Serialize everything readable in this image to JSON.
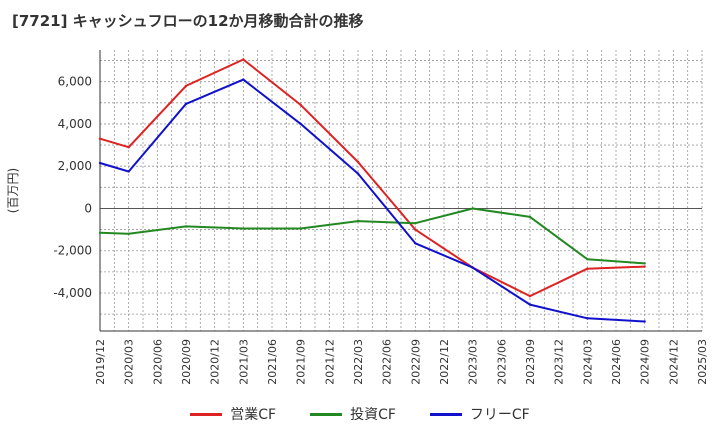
{
  "chart_data": {
    "type": "line",
    "title": "[7721]  キャッシュフローの12か月移動合計の推移",
    "ylabel": "(百万円)",
    "xlabel": "",
    "ylim": [
      -5800,
      7500
    ],
    "yticks": [
      6000,
      4000,
      2000,
      0,
      -2000,
      -4000
    ],
    "ytick_labels": [
      "6,000",
      "4,000",
      "2,000",
      "0",
      "-2,000",
      "-4,000"
    ],
    "categories": [
      "2019/12",
      "2020/03",
      "2020/06",
      "2020/09",
      "2020/12",
      "2021/03",
      "2021/06",
      "2021/09",
      "2021/12",
      "2022/03",
      "2022/06",
      "2022/09",
      "2022/12",
      "2023/03",
      "2023/06",
      "2023/09",
      "2023/12",
      "2024/03",
      "2024/06",
      "2024/09",
      "2024/12",
      "2025/03"
    ],
    "grid": true,
    "series": [
      {
        "name": "営業CF",
        "color": "#dd2222",
        "values": [
          3300,
          2900,
          null,
          5800,
          null,
          7050,
          null,
          4900,
          null,
          2200,
          null,
          -1000,
          null,
          -2800,
          null,
          -4150,
          null,
          -2850,
          null,
          -2750,
          null,
          null
        ]
      },
      {
        "name": "投資CF",
        "color": "#228822",
        "values": [
          -1150,
          -1200,
          null,
          -850,
          null,
          -950,
          null,
          -950,
          null,
          -600,
          null,
          -700,
          null,
          0,
          null,
          -400,
          null,
          -2400,
          null,
          -2600,
          null,
          null
        ]
      },
      {
        "name": "フリーCF",
        "color": "#1111cc",
        "values": [
          2150,
          1750,
          null,
          4950,
          null,
          6100,
          null,
          4000,
          null,
          1650,
          null,
          -1650,
          null,
          -2800,
          null,
          -4550,
          null,
          -5200,
          null,
          -5350,
          null,
          null
        ]
      }
    ]
  }
}
